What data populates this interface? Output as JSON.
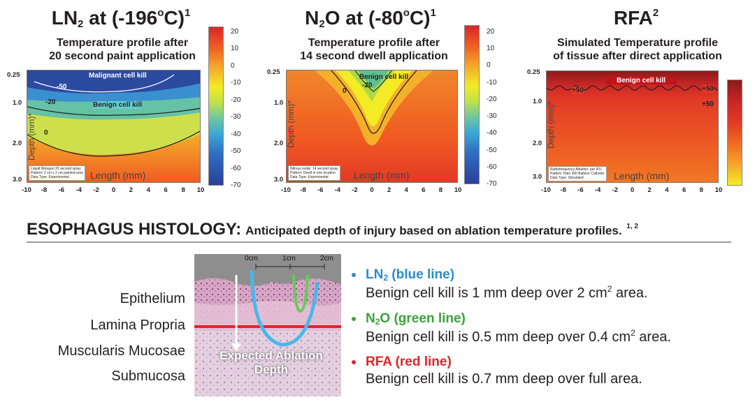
{
  "panels": [
    {
      "title_main": "LN",
      "title_sub": "2",
      "title_rest": " at (-196",
      "title_deg": "o",
      "title_tail": "C)",
      "title_ref": "1",
      "subtitle_line1": "Temperature profile after",
      "subtitle_line2": "20 second paint application",
      "xlabel": "Length (mm)",
      "ylabel": "Depth (mm)*",
      "x_ticks": [
        "-10",
        "-8",
        "-6",
        "-4",
        "-2",
        "0",
        "2",
        "4",
        "6",
        "8",
        "10"
      ],
      "y_ticks": [
        "0.25",
        "1.0",
        "2.0",
        "3.0"
      ],
      "annotations": {
        "top": "Malignant cell kill",
        "middle": "Benign cell kill",
        "c1": "-50",
        "c2": "-20",
        "c3": "0"
      },
      "note_lines": [
        "Liquid Nitrogen 20 second spray",
        "Pattern: 2 cm x 2 cm painted area",
        "Data Type: Experimental"
      ],
      "colorbar_ticks": [
        "20",
        "10",
        "0",
        "-10",
        "-20",
        "-30",
        "-40",
        "-50",
        "-60",
        "-70"
      ]
    },
    {
      "title_main": "N",
      "title_sub": "2",
      "title_rest": "O at (-80",
      "title_deg": "o",
      "title_tail": "C)",
      "title_ref": "1",
      "subtitle_line1": "Temperature profile after",
      "subtitle_line2": "14 second dwell application",
      "xlabel": "Length (mm)",
      "ylabel": "Depth (mm)*",
      "x_ticks": [
        "-10",
        "-8",
        "-6",
        "-4",
        "-2",
        "0",
        "2",
        "4",
        "6",
        "8",
        "10"
      ],
      "y_ticks": [
        "0.25",
        "1.0",
        "2.0",
        "3.0"
      ],
      "annotations": {
        "top": "Benign cell kill",
        "c1": "-20",
        "c2": "0"
      },
      "note_lines": [
        "Nitrous oxide: 14 second spray",
        "Pattern: Dwell in one location",
        "Data Type: Experimental"
      ],
      "colorbar_ticks": [
        "20",
        "10",
        "0",
        "-10",
        "-20",
        "-30",
        "-40",
        "-50",
        "-60",
        "-70"
      ]
    },
    {
      "title_main": "RFA",
      "title_ref": "2",
      "subtitle_line1": "Simulated Temperature profile",
      "subtitle_line2": "of tissue after direct application",
      "xlabel": "Length (mm)",
      "ylabel": "Depth (mm)*",
      "x_ticks": [
        "-10",
        "-8",
        "-6",
        "-4",
        "-2",
        "0",
        "2",
        "4",
        "6",
        "8",
        "10"
      ],
      "y_ticks": [
        "0.25",
        "1.0",
        "2.0",
        "3.0"
      ],
      "annotations": {
        "top": "Benign cell kill",
        "c1": "+50",
        "c2": "+50",
        "c3": "+50"
      },
      "note_lines": [
        "Radiofrequency Ablation: per IFU",
        "Pattern: Halo 360 Balloon Catheter",
        "Data Type: Simulated"
      ]
    }
  ],
  "histology": {
    "heading": "ESOPHAGUS HISTOLOGY:",
    "heading_rest": "Anticipated depth of injury based on ablation temperature profiles.",
    "heading_refs": "1, 2",
    "layers": [
      "Epithelium",
      "Lamina Propria",
      "Muscularis Mucosae",
      "Submucosa"
    ],
    "scale_ticks": [
      "0cm",
      "1cm",
      "2cm"
    ],
    "arrow_label_line1": "Expected Ablation",
    "arrow_label_line2": "Depth"
  },
  "legend": [
    {
      "head_main": "LN",
      "head_sub": "2",
      "head_rest": " (blue line)",
      "color": "#2a8ccb",
      "body_pre": "Benign cell kill is 1 mm deep over 2 cm",
      "body_sup": "2",
      "body_post": " area."
    },
    {
      "head_main": "N",
      "head_sub": "2",
      "head_rest": "O (green line)",
      "color": "#3aa23a",
      "body_pre": "Benign cell kill is 0.5 mm deep over 0.4 cm",
      "body_sup": "2",
      "body_post": " area."
    },
    {
      "head_main": "RFA (red line)",
      "head_sub": "",
      "head_rest": "",
      "color": "#e0252a",
      "body_pre": "Benign cell kill is 0.7 mm deep over full area.",
      "body_sup": "",
      "body_post": ""
    }
  ]
}
